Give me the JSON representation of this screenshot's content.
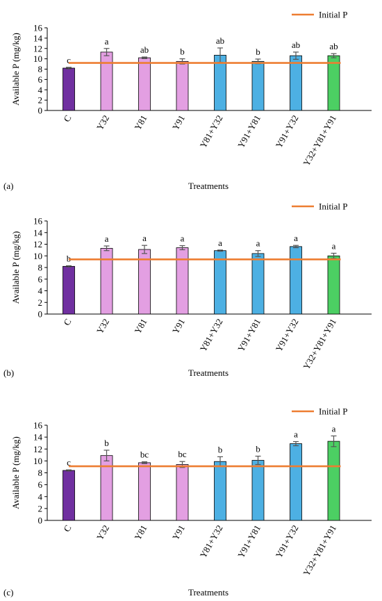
{
  "figure": {
    "panel_labels": [
      "(a)",
      "(b)",
      "(c)"
    ]
  },
  "chart_data": [
    {
      "type": "bar",
      "panel": "(a)",
      "categories": [
        "C",
        "Y32",
        "Y81",
        "Y91",
        "Y81+Y32",
        "Y91+Y81",
        "Y91+Y32",
        "Y32+Y81+Y91"
      ],
      "values": [
        8.2,
        11.3,
        10.2,
        9.5,
        10.7,
        9.5,
        10.6,
        10.6
      ],
      "errors": [
        0.15,
        0.7,
        0.15,
        0.5,
        1.4,
        0.45,
        0.7,
        0.4
      ],
      "letters": [
        "c",
        "a",
        "ab",
        "b",
        "ab",
        "b",
        "ab",
        "ab"
      ],
      "bar_colors": [
        "#7030a0",
        "#e39fe2",
        "#e39fe2",
        "#e39fe2",
        "#4db0e3",
        "#4db0e3",
        "#4db0e3",
        "#4ccf63"
      ],
      "reference_line": {
        "name": "Initial P",
        "value": 9.2,
        "color": "#ed7d31"
      },
      "ylabel": "Available P (mg/kg)",
      "xlabel": "Treatments",
      "ylim": [
        0,
        16
      ],
      "yticks": [
        0,
        2,
        4,
        6,
        8,
        10,
        12,
        14,
        16
      ],
      "grid": false,
      "legend": "top-right"
    },
    {
      "type": "bar",
      "panel": "(b)",
      "categories": [
        "C",
        "Y32",
        "Y81",
        "Y91",
        "Y81+Y32",
        "Y91+Y81",
        "Y91+Y32",
        "Y32+Y81+Y91"
      ],
      "values": [
        8.2,
        11.3,
        11.1,
        11.4,
        10.9,
        10.4,
        11.6,
        10.0
      ],
      "errors": [
        0.1,
        0.4,
        0.7,
        0.35,
        0.1,
        0.5,
        0.2,
        0.45
      ],
      "letters": [
        "b",
        "a",
        "a",
        "a",
        "a",
        "a",
        "a",
        "a"
      ],
      "bar_colors": [
        "#7030a0",
        "#e39fe2",
        "#e39fe2",
        "#e39fe2",
        "#4db0e3",
        "#4db0e3",
        "#4db0e3",
        "#4ccf63"
      ],
      "reference_line": {
        "name": "Initial P",
        "value": 9.4,
        "color": "#ed7d31"
      },
      "ylabel": "Available P (mg/kg)",
      "xlabel": "Treatments",
      "ylim": [
        0,
        16
      ],
      "yticks": [
        0,
        2,
        4,
        6,
        8,
        10,
        12,
        14,
        16
      ],
      "grid": false,
      "legend": "top-right"
    },
    {
      "type": "bar",
      "panel": "(c)",
      "categories": [
        "C",
        "Y32",
        "Y81",
        "Y91",
        "Y81+Y32",
        "Y91+Y81",
        "Y91+Y32",
        "Y32+Y81+Y91"
      ],
      "values": [
        8.4,
        10.9,
        9.7,
        9.4,
        9.9,
        10.1,
        12.9,
        13.3
      ],
      "errors": [
        0.1,
        0.9,
        0.15,
        0.5,
        0.8,
        0.7,
        0.35,
        0.9
      ],
      "letters": [
        "c",
        "b",
        "bc",
        "bc",
        "b",
        "b",
        "a",
        "a"
      ],
      "bar_colors": [
        "#7030a0",
        "#e39fe2",
        "#e39fe2",
        "#e39fe2",
        "#4db0e3",
        "#4db0e3",
        "#4db0e3",
        "#4ccf63"
      ],
      "reference_line": {
        "name": "Initial P",
        "value": 9.1,
        "color": "#ed7d31"
      },
      "ylabel": "Available P (mg/kg)",
      "xlabel": "Treatments",
      "ylim": [
        0,
        16
      ],
      "yticks": [
        0,
        2,
        4,
        6,
        8,
        10,
        12,
        14,
        16
      ],
      "grid": false,
      "legend": "top-right"
    }
  ]
}
